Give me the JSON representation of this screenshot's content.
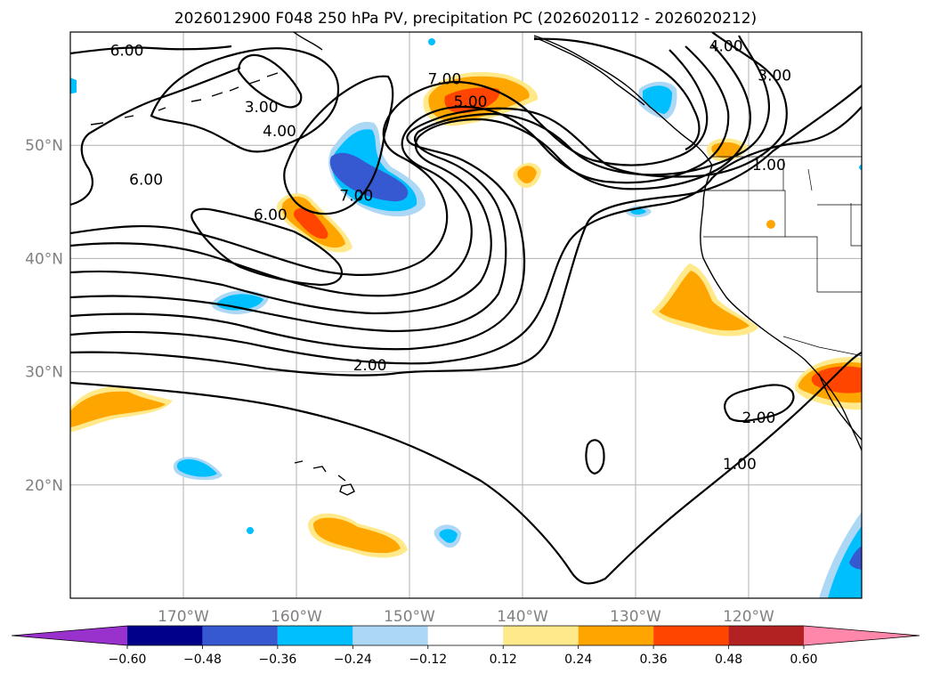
{
  "chart_data": {
    "type": "contour",
    "title": "2026012900 F048 250 hPa PV, precipitation PC (2026020112 - 2026020212)",
    "map": {
      "lon_range": [
        180,
        110
      ],
      "lat_range": [
        10,
        60
      ],
      "x_ticks": [
        {
          "lon": 170,
          "label": "170°W"
        },
        {
          "lon": 160,
          "label": "160°W"
        },
        {
          "lon": 150,
          "label": "150°W"
        },
        {
          "lon": 140,
          "label": "140°W"
        },
        {
          "lon": 130,
          "label": "130°W"
        },
        {
          "lon": 120,
          "label": "120°W"
        }
      ],
      "y_ticks": [
        {
          "lat": 50,
          "label": "50°N"
        },
        {
          "lat": 40,
          "label": "40°N"
        },
        {
          "lat": 30,
          "label": "30°N"
        },
        {
          "lat": 20,
          "label": "20°N"
        }
      ]
    },
    "contour_labels": [
      {
        "text": "6.00",
        "lon": 175,
        "lat": 58.3
      },
      {
        "text": "3.00",
        "lon": 163.1,
        "lat": 53.3
      },
      {
        "text": "4.00",
        "lon": 161.5,
        "lat": 51.2
      },
      {
        "text": "6.00",
        "lon": 173.3,
        "lat": 46.9
      },
      {
        "text": "6.00",
        "lon": 162.3,
        "lat": 43.8
      },
      {
        "text": "7.00",
        "lon": 154.7,
        "lat": 45.5
      },
      {
        "text": "7.00",
        "lon": 146.9,
        "lat": 55.8
      },
      {
        "text": "5.00",
        "lon": 144.6,
        "lat": 53.8
      },
      {
        "text": "2.00",
        "lon": 153.5,
        "lat": 30.5
      },
      {
        "text": "2.00",
        "lon": 119.1,
        "lat": 25.9
      },
      {
        "text": "1.00",
        "lon": 120.8,
        "lat": 21.8
      },
      {
        "text": "1.00",
        "lon": 118.2,
        "lat": 48.2
      },
      {
        "text": "3.00",
        "lon": 117.7,
        "lat": 56.1
      },
      {
        "text": "4.00",
        "lon": 122,
        "lat": 58.7
      }
    ],
    "colorbar": {
      "levels": [
        -0.6,
        -0.48,
        -0.36,
        -0.24,
        -0.12,
        0.12,
        0.24,
        0.36,
        0.48,
        0.6
      ],
      "tick_labels": [
        "−0.60",
        "−0.48",
        "−0.36",
        "−0.24",
        "−0.12",
        "0.12",
        "0.24",
        "0.36",
        "0.48",
        "0.60"
      ],
      "colors": [
        "#9932cc",
        "#00008b",
        "#3658d0",
        "#00bfff",
        "#add8f5",
        "#ffffff",
        "#ffe98a",
        "#ffa500",
        "#ff4500",
        "#b22222",
        "#ff87aa"
      ],
      "extend": "both"
    }
  }
}
